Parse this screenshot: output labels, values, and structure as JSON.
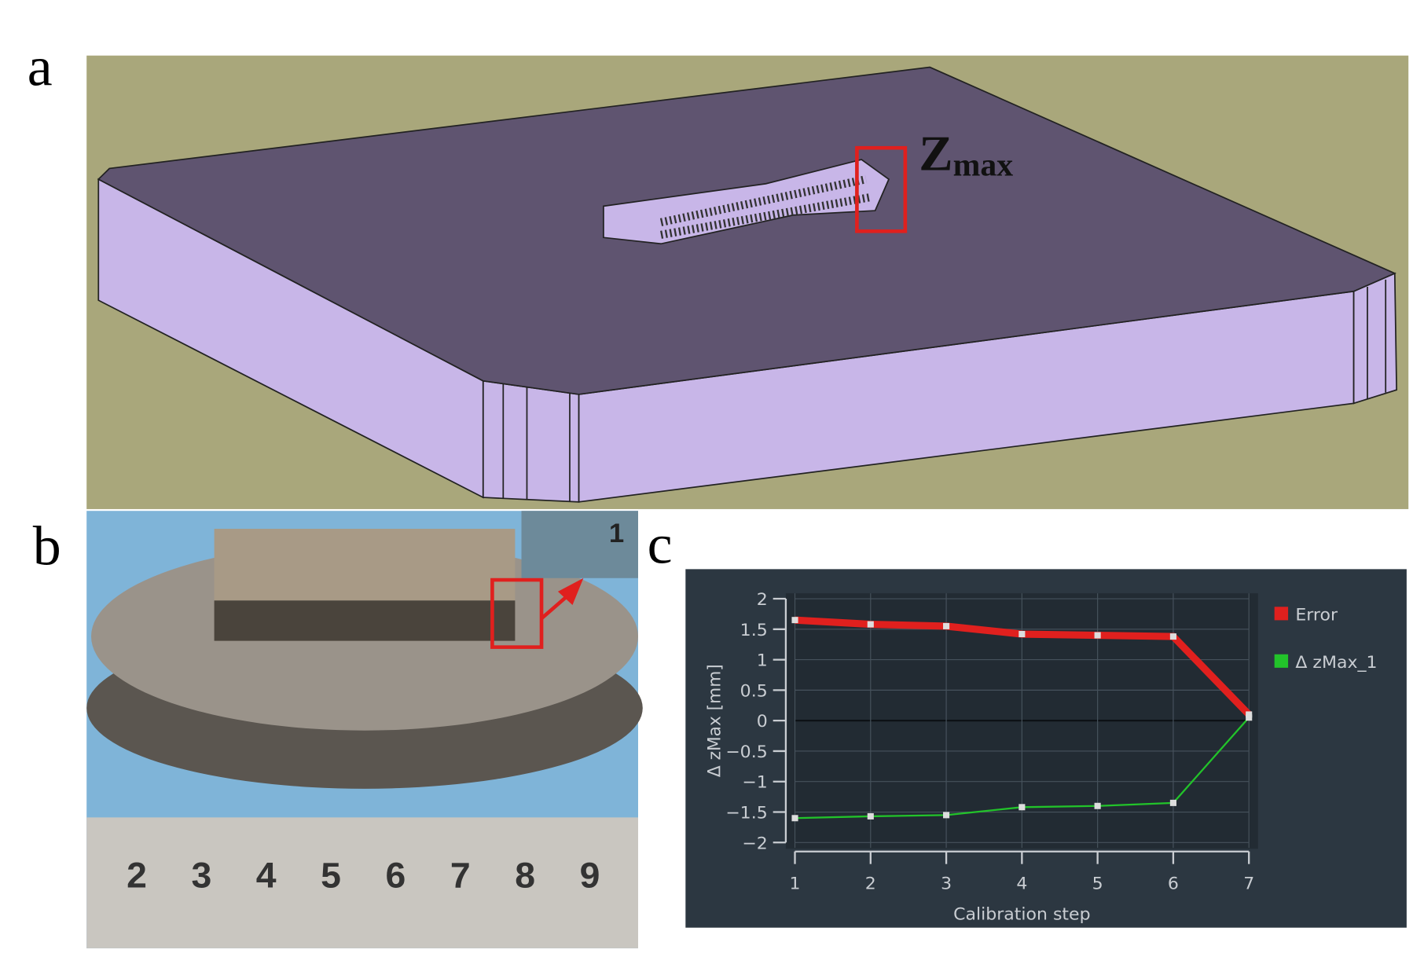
{
  "panel_a": {
    "label": "a",
    "annotation": {
      "main": "Z",
      "sub": "max"
    }
  },
  "panel_b": {
    "label": "b",
    "ruler_numbers": [
      "2",
      "3",
      "4",
      "5",
      "6",
      "7",
      "8",
      "9"
    ],
    "inset_number": "1"
  },
  "panel_c": {
    "label": "c"
  },
  "chart_data": {
    "type": "line",
    "x_label": "Calibration step",
    "y_label": "Δ zMax [mm]",
    "x": [
      1,
      2,
      3,
      4,
      5,
      6,
      7
    ],
    "series": [
      {
        "name": "Error",
        "color": "#e0201e",
        "values": [
          1.65,
          1.58,
          1.55,
          1.42,
          1.4,
          1.38,
          0.1
        ]
      },
      {
        "name": "Δ zMax_1",
        "color": "#22c32a",
        "values": [
          -1.6,
          -1.57,
          -1.55,
          -1.42,
          -1.4,
          -1.35,
          0.05
        ]
      }
    ],
    "xlim": [
      1,
      7
    ],
    "xticks": [
      1,
      2,
      3,
      4,
      5,
      6,
      7
    ],
    "ylim": [
      -2,
      2
    ],
    "yticks": [
      {
        "value": -2,
        "label": "−2"
      },
      {
        "value": -1.5,
        "label": "−1.5"
      },
      {
        "value": -1,
        "label": "−1"
      },
      {
        "value": -0.5,
        "label": "−0.5"
      },
      0,
      0.5,
      1,
      1.5,
      2
    ],
    "grid": true,
    "legend": "right"
  }
}
